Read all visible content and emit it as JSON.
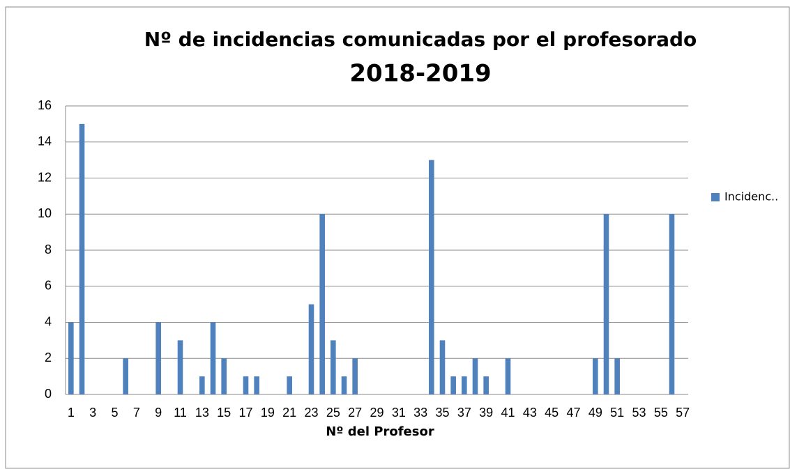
{
  "chart_data": {
    "type": "bar",
    "title": "Nº de incidencias comunicadas por el profesorado",
    "subtitle": "2018-2019",
    "x_label": "Nº del Profesor",
    "categories": [
      1,
      null,
      3,
      null,
      5,
      null,
      7,
      null,
      9,
      null,
      11,
      null,
      13,
      null,
      15,
      null,
      17,
      null,
      19,
      null,
      21,
      null,
      23,
      null,
      25,
      null,
      27,
      null,
      29,
      null,
      31,
      null,
      33,
      null,
      35,
      null,
      37,
      null,
      39,
      null,
      41,
      null,
      43,
      null,
      45,
      null,
      47,
      null,
      49,
      null,
      51,
      null,
      53,
      null,
      55,
      null,
      57
    ],
    "series": [
      {
        "name": "Incidenc..",
        "color": "#4f81bd",
        "values": [
          4,
          15,
          0,
          0,
          0,
          2,
          0,
          0,
          4,
          0,
          3,
          0,
          1,
          4,
          2,
          0,
          1,
          1,
          0,
          0,
          1,
          0,
          5,
          10,
          3,
          1,
          2,
          0,
          0,
          0,
          0,
          0,
          0,
          13,
          3,
          1,
          1,
          2,
          1,
          0,
          2,
          0,
          0,
          0,
          0,
          0,
          0,
          0,
          2,
          10,
          2,
          0,
          0,
          0,
          0,
          10,
          0
        ]
      }
    ],
    "ylim": [
      0,
      16
    ],
    "yticks": [
      0,
      2,
      4,
      6,
      8,
      10,
      12,
      14,
      16
    ],
    "grid": true,
    "legend": "right"
  }
}
